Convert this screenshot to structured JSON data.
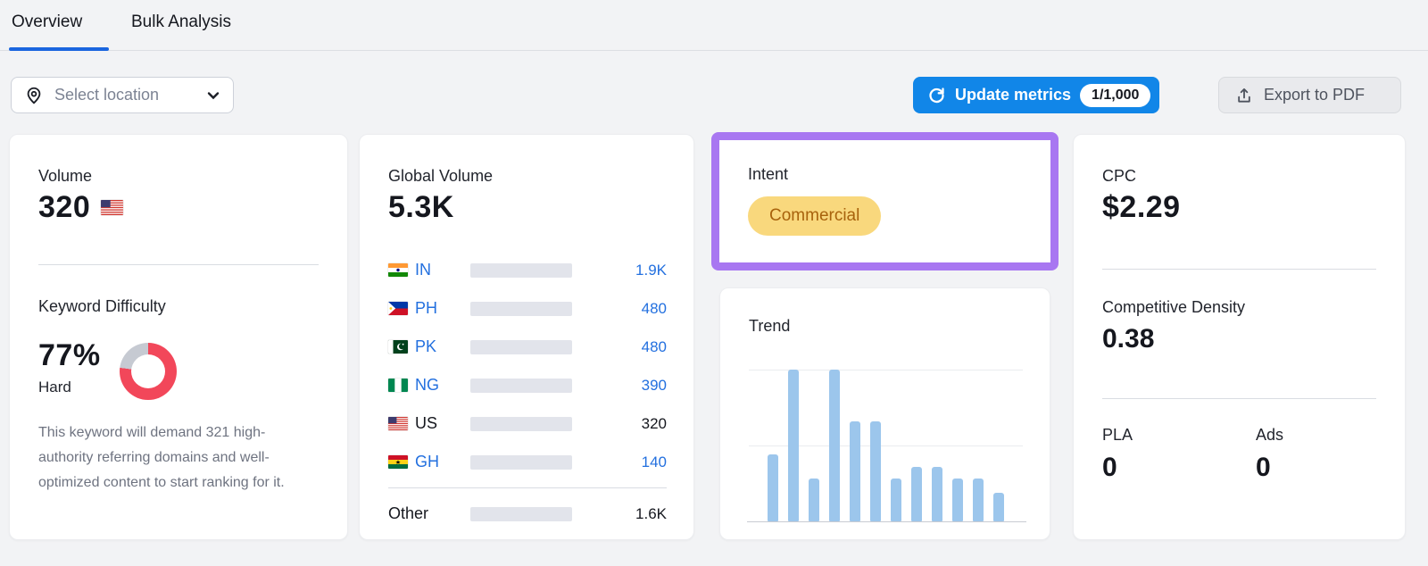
{
  "tabs": {
    "overview": "Overview",
    "bulk_analysis": "Bulk Analysis"
  },
  "toolbar": {
    "select_location": {
      "label": "Select location",
      "icon": "location-pin-icon"
    },
    "update_metrics": {
      "label": "Update metrics",
      "badge": "1/1,000",
      "icon": "refresh-icon"
    },
    "export_pdf": {
      "label": "Export to PDF",
      "icon": "export-icon"
    }
  },
  "cards": {
    "volume": {
      "label": "Volume",
      "value": "320",
      "flag": "us-flag-icon"
    },
    "keyword_difficulty": {
      "label": "Keyword Difficulty",
      "percent": "77%",
      "percent_value": 77,
      "level": "Hard",
      "description": "This keyword will demand 321 high-authority referring domains and well-optimized content to start ranking for it."
    },
    "global_volume": {
      "label": "Global Volume",
      "value": "5.3K",
      "rows": [
        {
          "code": "IN",
          "value": "1.9K",
          "numeric": 1900,
          "fill_pct": 36,
          "link": true,
          "flag": "in-flag-icon"
        },
        {
          "code": "PH",
          "value": "480",
          "numeric": 480,
          "fill_pct": 9,
          "link": true,
          "flag": "ph-flag-icon"
        },
        {
          "code": "PK",
          "value": "480",
          "numeric": 480,
          "fill_pct": 9,
          "link": true,
          "flag": "pk-flag-icon"
        },
        {
          "code": "NG",
          "value": "390",
          "numeric": 390,
          "fill_pct": 7.4,
          "link": true,
          "flag": "ng-flag-icon"
        },
        {
          "code": "US",
          "value": "320",
          "numeric": 320,
          "fill_pct": 6,
          "link": false,
          "flag": "us-flag-icon"
        },
        {
          "code": "GH",
          "value": "140",
          "numeric": 140,
          "fill_pct": 2.6,
          "link": true,
          "flag": "gh-flag-icon"
        }
      ],
      "other": {
        "label": "Other",
        "value": "1.6K",
        "numeric": 1600,
        "fill_pct": 30
      }
    },
    "intent": {
      "label": "Intent",
      "badge": "Commercial"
    },
    "trend": {
      "label": "Trend"
    },
    "cpc": {
      "label": "CPC",
      "value": "$2.29"
    },
    "competitive_density": {
      "label": "Competitive Density",
      "value": "0.38"
    },
    "pla": {
      "label": "PLA",
      "value": "0"
    },
    "ads": {
      "label": "Ads",
      "value": "0"
    }
  },
  "chart_data": [
    {
      "type": "bar",
      "title": "Global Volume by country",
      "orientation": "horizontal",
      "categories": [
        "IN",
        "PH",
        "PK",
        "NG",
        "US",
        "GH",
        "Other"
      ],
      "values": [
        1900,
        480,
        480,
        390,
        320,
        140,
        1600
      ],
      "total_label": "5.3K",
      "total": 5300,
      "legend_position": "none",
      "grid": false
    },
    {
      "type": "bar",
      "title": "Trend",
      "categories": [
        "1",
        "2",
        "3",
        "4",
        "5",
        "6",
        "7",
        "8",
        "9",
        "10",
        "11",
        "12"
      ],
      "values": [
        0.44,
        1.0,
        0.28,
        1.0,
        0.66,
        0.66,
        0.28,
        0.36,
        0.36,
        0.28,
        0.28,
        0.19
      ],
      "xlabel": "",
      "ylabel": "",
      "ylim": [
        0,
        1
      ],
      "gridlines": [
        0,
        0.5,
        1.0
      ],
      "legend_position": "none"
    },
    {
      "type": "pie",
      "title": "Keyword Difficulty donut",
      "categories": [
        "difficult",
        "remaining"
      ],
      "values": [
        77,
        23
      ]
    }
  ],
  "colors": {
    "accent_blue": "#1186E8",
    "tab_underline": "#1A65DF",
    "link_blue": "#2370DF",
    "bar_blue": "#2BB0FB",
    "bar_blue_dark": "#1D63D8",
    "bar_track": "#E2E4EB",
    "trend_bar": "#9CC6EC",
    "kd_red": "#F2475A",
    "kd_gray": "#C6CAD2",
    "intent_bg": "#F9D87D",
    "intent_text": "#A8620C",
    "highlight_purple": "#A877F1"
  }
}
